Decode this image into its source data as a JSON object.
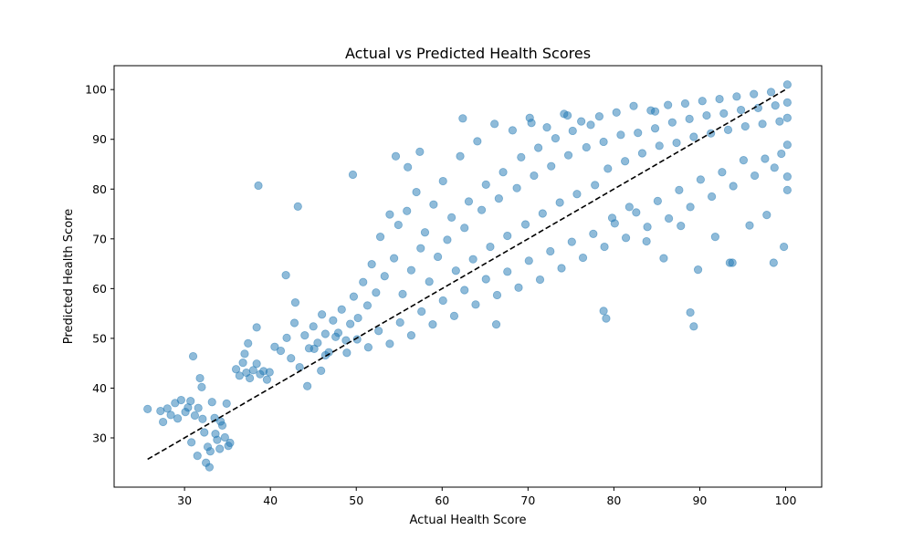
{
  "chart_data": {
    "type": "scatter",
    "title": "Actual vs Predicted Health Scores",
    "xlabel": "Actual Health Score",
    "ylabel": "Predicted Health Score",
    "xlim": [
      21.8,
      104.2
    ],
    "ylim": [
      20.1,
      104.8
    ],
    "xticks": [
      30,
      40,
      50,
      60,
      70,
      80,
      90,
      100
    ],
    "yticks": [
      30,
      40,
      50,
      60,
      70,
      80,
      90,
      100
    ],
    "grid": false,
    "marker_color": "#1f77b4",
    "marker_alpha": 0.5,
    "reference_line": {
      "style": "dashed",
      "color": "#000000",
      "x": [
        25.7,
        100.2
      ],
      "y": [
        25.7,
        100.2
      ]
    },
    "series": [
      {
        "points": [
          [
            25.7,
            35.8
          ],
          [
            27.2,
            35.4
          ],
          [
            27.5,
            33.2
          ],
          [
            28.0,
            35.9
          ],
          [
            28.4,
            34.6
          ],
          [
            28.9,
            37.0
          ],
          [
            29.2,
            33.9
          ],
          [
            29.6,
            37.6
          ],
          [
            30.1,
            35.2
          ],
          [
            30.4,
            36.1
          ],
          [
            30.7,
            37.4
          ],
          [
            31.2,
            34.5
          ],
          [
            31.0,
            46.4
          ],
          [
            31.6,
            36.0
          ],
          [
            32.1,
            33.8
          ],
          [
            31.8,
            42.0
          ],
          [
            32.3,
            31.1
          ],
          [
            32.7,
            28.2
          ],
          [
            33.0,
            27.3
          ],
          [
            33.2,
            37.2
          ],
          [
            33.5,
            34.0
          ],
          [
            33.8,
            29.6
          ],
          [
            34.1,
            27.8
          ],
          [
            34.4,
            32.5
          ],
          [
            34.7,
            30.1
          ],
          [
            34.9,
            36.9
          ],
          [
            35.1,
            28.4
          ],
          [
            32.9,
            24.1
          ],
          [
            32.5,
            25.0
          ],
          [
            31.5,
            26.4
          ],
          [
            30.8,
            29.1
          ],
          [
            33.6,
            30.8
          ],
          [
            34.2,
            33.3
          ],
          [
            32.0,
            40.2
          ],
          [
            35.3,
            29.0
          ],
          [
            36.0,
            43.8
          ],
          [
            36.4,
            42.5
          ],
          [
            36.8,
            45.1
          ],
          [
            37.2,
            43.1
          ],
          [
            37.6,
            42.0
          ],
          [
            38.0,
            43.6
          ],
          [
            38.4,
            44.9
          ],
          [
            38.8,
            42.8
          ],
          [
            39.2,
            43.4
          ],
          [
            39.6,
            41.7
          ],
          [
            39.9,
            43.2
          ],
          [
            37.0,
            46.9
          ],
          [
            37.4,
            49.0
          ],
          [
            38.4,
            52.2
          ],
          [
            38.6,
            80.7
          ],
          [
            43.2,
            76.5
          ],
          [
            41.8,
            62.7
          ],
          [
            42.9,
            57.2
          ],
          [
            40.5,
            48.3
          ],
          [
            41.2,
            47.5
          ],
          [
            41.9,
            50.1
          ],
          [
            42.4,
            46.0
          ],
          [
            42.8,
            53.1
          ],
          [
            43.4,
            44.2
          ],
          [
            44.0,
            50.6
          ],
          [
            44.5,
            48.0
          ],
          [
            45.0,
            52.4
          ],
          [
            45.5,
            49.1
          ],
          [
            46.0,
            54.8
          ],
          [
            46.4,
            50.9
          ],
          [
            46.8,
            47.2
          ],
          [
            47.3,
            53.6
          ],
          [
            47.9,
            51.1
          ],
          [
            48.3,
            55.8
          ],
          [
            48.8,
            49.6
          ],
          [
            49.3,
            52.9
          ],
          [
            49.7,
            58.4
          ],
          [
            50.2,
            54.1
          ],
          [
            50.8,
            61.3
          ],
          [
            51.3,
            56.6
          ],
          [
            51.8,
            64.9
          ],
          [
            52.3,
            59.2
          ],
          [
            52.8,
            70.4
          ],
          [
            53.3,
            62.5
          ],
          [
            53.9,
            74.9
          ],
          [
            54.4,
            66.1
          ],
          [
            54.9,
            72.8
          ],
          [
            55.4,
            58.9
          ],
          [
            55.9,
            75.6
          ],
          [
            56.4,
            63.7
          ],
          [
            57.0,
            79.4
          ],
          [
            57.5,
            68.1
          ],
          [
            58.0,
            71.3
          ],
          [
            58.5,
            61.4
          ],
          [
            59.0,
            76.9
          ],
          [
            59.5,
            66.4
          ],
          [
            60.1,
            81.6
          ],
          [
            60.6,
            69.8
          ],
          [
            61.1,
            74.3
          ],
          [
            61.6,
            63.6
          ],
          [
            62.1,
            86.6
          ],
          [
            62.6,
            72.2
          ],
          [
            63.1,
            77.5
          ],
          [
            63.6,
            65.9
          ],
          [
            64.1,
            89.6
          ],
          [
            64.6,
            75.8
          ],
          [
            65.1,
            80.9
          ],
          [
            65.6,
            68.4
          ],
          [
            66.1,
            93.1
          ],
          [
            66.6,
            78.1
          ],
          [
            67.1,
            83.4
          ],
          [
            67.6,
            70.6
          ],
          [
            68.2,
            91.8
          ],
          [
            68.7,
            80.2
          ],
          [
            69.2,
            86.4
          ],
          [
            69.7,
            72.9
          ],
          [
            70.2,
            94.3
          ],
          [
            70.7,
            82.7
          ],
          [
            71.2,
            88.3
          ],
          [
            71.7,
            75.1
          ],
          [
            72.2,
            92.4
          ],
          [
            72.7,
            84.6
          ],
          [
            73.2,
            90.2
          ],
          [
            73.7,
            77.3
          ],
          [
            74.2,
            95.1
          ],
          [
            74.7,
            86.8
          ],
          [
            75.2,
            91.7
          ],
          [
            75.7,
            79.0
          ],
          [
            76.2,
            93.6
          ],
          [
            76.8,
            88.4
          ],
          [
            77.3,
            92.9
          ],
          [
            77.8,
            80.8
          ],
          [
            78.3,
            94.6
          ],
          [
            78.8,
            89.5
          ],
          [
            79.3,
            84.1
          ],
          [
            79.8,
            74.2
          ],
          [
            80.3,
            95.4
          ],
          [
            80.8,
            90.9
          ],
          [
            81.3,
            85.6
          ],
          [
            81.8,
            76.4
          ],
          [
            82.3,
            96.7
          ],
          [
            82.8,
            91.3
          ],
          [
            83.3,
            87.2
          ],
          [
            83.8,
            69.5
          ],
          [
            84.3,
            95.8
          ],
          [
            84.8,
            92.2
          ],
          [
            85.3,
            88.7
          ],
          [
            85.8,
            66.1
          ],
          [
            86.3,
            96.9
          ],
          [
            86.8,
            93.4
          ],
          [
            87.3,
            89.3
          ],
          [
            87.8,
            72.6
          ],
          [
            88.3,
            97.2
          ],
          [
            88.8,
            94.1
          ],
          [
            89.3,
            90.5
          ],
          [
            89.8,
            63.8
          ],
          [
            90.3,
            97.7
          ],
          [
            90.8,
            94.8
          ],
          [
            91.3,
            91.2
          ],
          [
            91.8,
            70.4
          ],
          [
            92.3,
            98.1
          ],
          [
            92.8,
            95.2
          ],
          [
            93.3,
            91.9
          ],
          [
            93.8,
            65.2
          ],
          [
            94.3,
            98.6
          ],
          [
            94.8,
            95.9
          ],
          [
            95.3,
            92.6
          ],
          [
            95.8,
            72.7
          ],
          [
            96.3,
            99.1
          ],
          [
            96.8,
            96.3
          ],
          [
            97.3,
            93.1
          ],
          [
            97.8,
            74.8
          ],
          [
            98.3,
            99.5
          ],
          [
            98.8,
            96.8
          ],
          [
            99.3,
            93.6
          ],
          [
            99.8,
            68.4
          ],
          [
            100.2,
            101.0
          ],
          [
            100.2,
            97.4
          ],
          [
            100.2,
            94.3
          ],
          [
            100.2,
            88.9
          ],
          [
            100.2,
            82.5
          ],
          [
            100.2,
            79.8
          ],
          [
            99.5,
            87.1
          ],
          [
            98.7,
            84.3
          ],
          [
            97.6,
            86.1
          ],
          [
            96.4,
            82.7
          ],
          [
            95.1,
            85.8
          ],
          [
            93.9,
            80.6
          ],
          [
            92.6,
            83.4
          ],
          [
            91.4,
            78.5
          ],
          [
            90.1,
            81.9
          ],
          [
            88.9,
            76.4
          ],
          [
            87.6,
            79.8
          ],
          [
            86.4,
            74.1
          ],
          [
            85.1,
            77.6
          ],
          [
            83.9,
            72.4
          ],
          [
            82.6,
            75.3
          ],
          [
            81.4,
            70.2
          ],
          [
            80.1,
            73.1
          ],
          [
            78.9,
            68.4
          ],
          [
            77.6,
            71.0
          ],
          [
            76.4,
            66.2
          ],
          [
            75.1,
            69.4
          ],
          [
            73.9,
            64.1
          ],
          [
            72.6,
            67.5
          ],
          [
            71.4,
            61.8
          ],
          [
            70.1,
            65.6
          ],
          [
            68.9,
            60.2
          ],
          [
            67.6,
            63.4
          ],
          [
            66.4,
            58.7
          ],
          [
            65.1,
            61.9
          ],
          [
            63.9,
            56.8
          ],
          [
            62.6,
            59.7
          ],
          [
            61.4,
            54.5
          ],
          [
            60.1,
            57.6
          ],
          [
            58.9,
            52.8
          ],
          [
            57.6,
            55.4
          ],
          [
            56.4,
            50.6
          ],
          [
            55.1,
            53.2
          ],
          [
            53.9,
            48.9
          ],
          [
            52.6,
            51.5
          ],
          [
            51.4,
            48.2
          ],
          [
            50.1,
            49.8
          ],
          [
            48.9,
            47.1
          ],
          [
            47.6,
            50.3
          ],
          [
            46.4,
            46.6
          ],
          [
            45.1,
            47.9
          ],
          [
            44.3,
            40.4
          ],
          [
            45.9,
            43.5
          ],
          [
            66.3,
            52.8
          ],
          [
            89.3,
            52.4
          ],
          [
            88.9,
            55.2
          ],
          [
            79.1,
            54.0
          ],
          [
            78.8,
            55.5
          ],
          [
            49.6,
            82.9
          ],
          [
            54.6,
            86.6
          ],
          [
            56.0,
            84.4
          ],
          [
            57.4,
            87.5
          ],
          [
            62.4,
            94.2
          ],
          [
            70.4,
            93.3
          ],
          [
            74.6,
            94.8
          ],
          [
            84.8,
            95.6
          ],
          [
            93.5,
            65.2
          ],
          [
            98.6,
            65.2
          ]
        ]
      }
    ]
  }
}
